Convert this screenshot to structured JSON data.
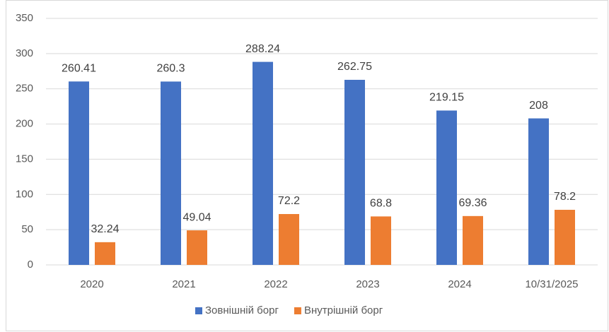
{
  "chart_data": {
    "type": "bar",
    "categories": [
      "2020",
      "2021",
      "2022",
      "2023",
      "2024",
      "10/31/2025"
    ],
    "series": [
      {
        "name": "Зовнішній борг",
        "color": "#4472c4",
        "values": [
          260.41,
          260.3,
          288.24,
          262.75,
          219.15,
          208
        ]
      },
      {
        "name": "Внутрішній борг",
        "color": "#ed7d31",
        "values": [
          32.24,
          49.04,
          72.2,
          68.8,
          69.36,
          78.2
        ]
      }
    ],
    "ylim": [
      0,
      350
    ],
    "yticks": [
      0,
      50,
      100,
      150,
      200,
      250,
      300,
      350
    ],
    "grid": true,
    "legend": "bottom"
  }
}
